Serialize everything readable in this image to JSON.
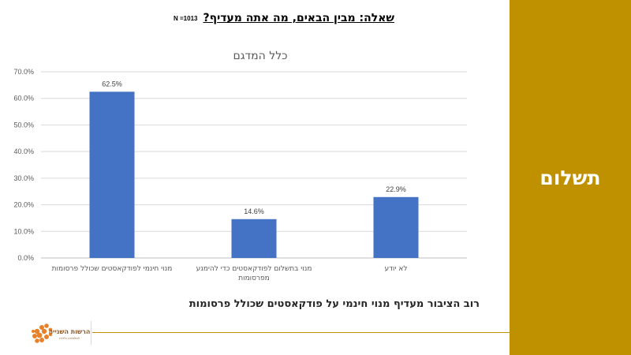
{
  "question": "שאלה: מבין הבאים, מה אתה מעדיף?",
  "sample_size": "N =1013",
  "sidebar_title": "תשלום",
  "conclusion": "רוב הציבור מעדיף מנוי חינמי על פודקאסטים שכולל פרסומות",
  "colors": {
    "accent": "#BF9000",
    "bar": "#4472C4",
    "footer_line": "#BF9000"
  },
  "logo": {
    "text": "הרשות השנייה",
    "subtext": "לטלוויזיה ולרדיו",
    "icon": "orange-dots-logo"
  },
  "chart_data": {
    "type": "bar",
    "title": "כלל המדגם",
    "categories": [
      [
        "מנוי חינמי לפודקאסטים שכולל פרסומות"
      ],
      [
        "מנוי בתשלום לפודקאסטים כדי להימנע",
        "מפרסומות"
      ],
      [
        "לא יודע"
      ]
    ],
    "values": [
      62.5,
      14.6,
      22.9
    ],
    "value_labels": [
      "62.5%",
      "14.6%",
      "22.9%"
    ],
    "ylim": [
      0,
      70
    ],
    "yticks": [
      "0.0%",
      "10.0%",
      "20.0%",
      "30.0%",
      "40.0%",
      "50.0%",
      "60.0%",
      "70.0%"
    ],
    "grid": true,
    "xlabel": "",
    "ylabel": ""
  }
}
